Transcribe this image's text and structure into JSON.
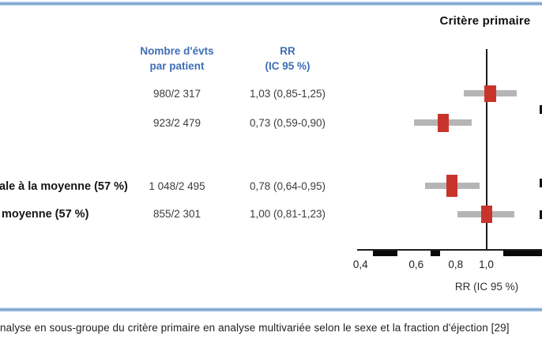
{
  "figure": {
    "plot_title": "Critère primaire",
    "columns": {
      "events_line1": "Nombre d'évts",
      "events_line2": "par patient",
      "rr_line1": "RR",
      "rr_line2": "(IC 95 %)"
    },
    "rows": [
      {
        "label": "",
        "events": "980/2 317",
        "rr_text": "1,03 (0,85-1,25)"
      },
      {
        "label": "",
        "events": "923/2 479",
        "rr_text": "0,73 (0,59-0,90)"
      },
      {
        "label": "ale à la moyenne (57 %)",
        "events": "1 048/2 495",
        "rr_text": "0,78 (0,64-0,95)"
      },
      {
        "label": "moyenne (57 %)",
        "events": "855/2 301",
        "rr_text": "1,00 (0,81-1,23)"
      }
    ],
    "axis": {
      "tick_labels": [
        "0,4",
        "0,6",
        "0,8",
        "1,0"
      ],
      "title": "RR (IC 95 %)"
    },
    "caption": "nalyse en sous-groupe du critère primaire en analyse multivariée selon le sexe et la fraction d'éjection [29]"
  },
  "colors": {
    "header_blue": "#3e6db6",
    "marker_red": "#c8342c",
    "ci_gray": "#b5b5b5",
    "border_blue": "#6f9bca"
  },
  "chart_data": {
    "type": "forest",
    "title": "Critère primaire",
    "xlabel": "RR (IC 95 %)",
    "x_scale": "log",
    "x_ticks": [
      0.4,
      0.6,
      0.8,
      1.0
    ],
    "xlim": [
      0.39,
      1.5
    ],
    "reference_line": 1.0,
    "rows": [
      {
        "label": "",
        "n_events": "980/2 317",
        "rr": 1.03,
        "ci_low": 0.85,
        "ci_high": 1.25
      },
      {
        "label": "",
        "n_events": "923/2 479",
        "rr": 0.73,
        "ci_low": 0.59,
        "ci_high": 0.9
      },
      {
        "label": "ale à la moyenne (57 %)",
        "n_events": "1 048/2 495",
        "rr": 0.78,
        "ci_low": 0.64,
        "ci_high": 0.95
      },
      {
        "label": "moyenne (57 %)",
        "n_events": "855/2 301",
        "rr": 1.0,
        "ci_low": 0.81,
        "ci_high": 1.23
      }
    ]
  }
}
